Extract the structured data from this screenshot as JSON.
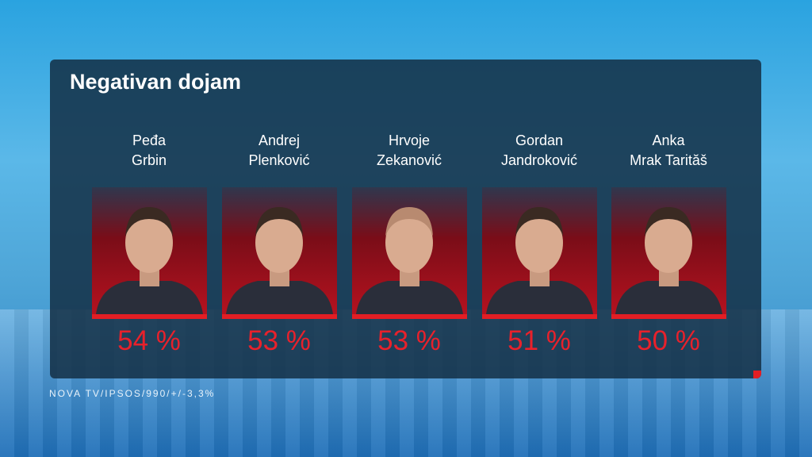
{
  "title": "Negativan dojam",
  "candidates": [
    {
      "name_lines": [
        "Peđa",
        "Grbin"
      ],
      "value": "54 %"
    },
    {
      "name_lines": [
        "Andrej",
        "Plenković"
      ],
      "value": "53 %"
    },
    {
      "name_lines": [
        "Hrvoje",
        "Zekanović"
      ],
      "value": "53 %"
    },
    {
      "name_lines": [
        "Gordan",
        "Jandroković"
      ],
      "value": "51 %"
    },
    {
      "name_lines": [
        "Anka",
        "Mrak Tarităš"
      ],
      "value": "50 %"
    }
  ],
  "source": "NOVA TV/IPSOS/990/+/-3,3%"
}
